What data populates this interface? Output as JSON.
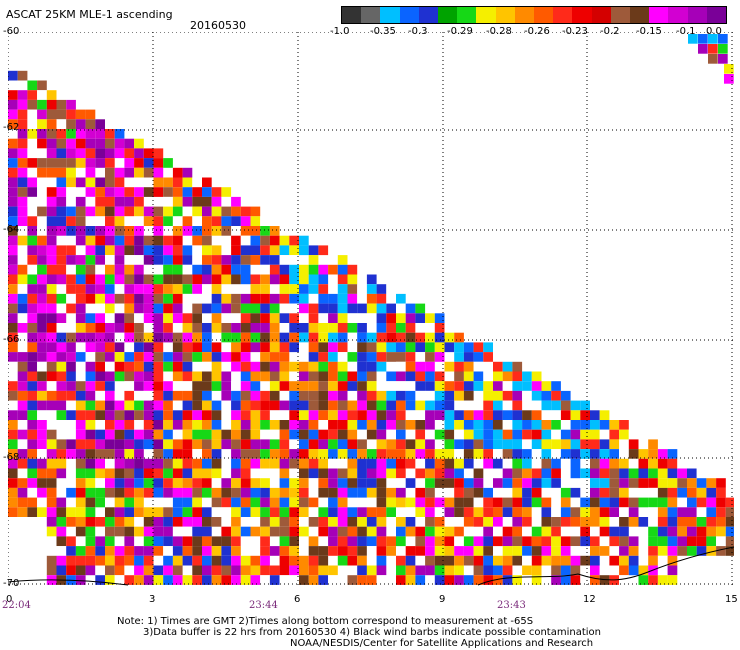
{
  "header": {
    "title": "ASCAT 25KM MLE-1 ascending",
    "date": "20160530"
  },
  "legend": {
    "labels": [
      "-1.0",
      "-0.35",
      "-0.3",
      "-0.29",
      "-0.28",
      "-0.26",
      "-0.23",
      "-0.2",
      "-0.15",
      "-0.1",
      "0.0"
    ],
    "colors": [
      "#333333",
      "#666666",
      "#00bfff",
      "#0a64ff",
      "#1f31d1",
      "#00a300",
      "#16d816",
      "#f5ef00",
      "#ffc400",
      "#ff8a00",
      "#ff5a00",
      "#ff2a1a",
      "#ee0000",
      "#d40000",
      "#9e5a3a",
      "#6b3a1a",
      "#ff00ff",
      "#d200d2",
      "#a600b8",
      "#7a0098"
    ]
  },
  "axes": {
    "x_ticks": [
      "0",
      "3",
      "6",
      "9",
      "12",
      "15"
    ],
    "y_ticks": [
      "-60",
      "-62",
      "-64",
      "-66",
      "-68",
      "-70"
    ],
    "times": [
      "22:04",
      "23:44",
      "23:43"
    ]
  },
  "notes": {
    "line1": "Note: 1) Times are GMT 2)Times along bottom correspond to measurement at -65S",
    "line2": "3)Data buffer is 22 hrs from 20160530 4) Black wind barbs indicate possible contamination",
    "line3": "NOAA/NESDIS/Center for Satellite Applications and Research"
  }
}
